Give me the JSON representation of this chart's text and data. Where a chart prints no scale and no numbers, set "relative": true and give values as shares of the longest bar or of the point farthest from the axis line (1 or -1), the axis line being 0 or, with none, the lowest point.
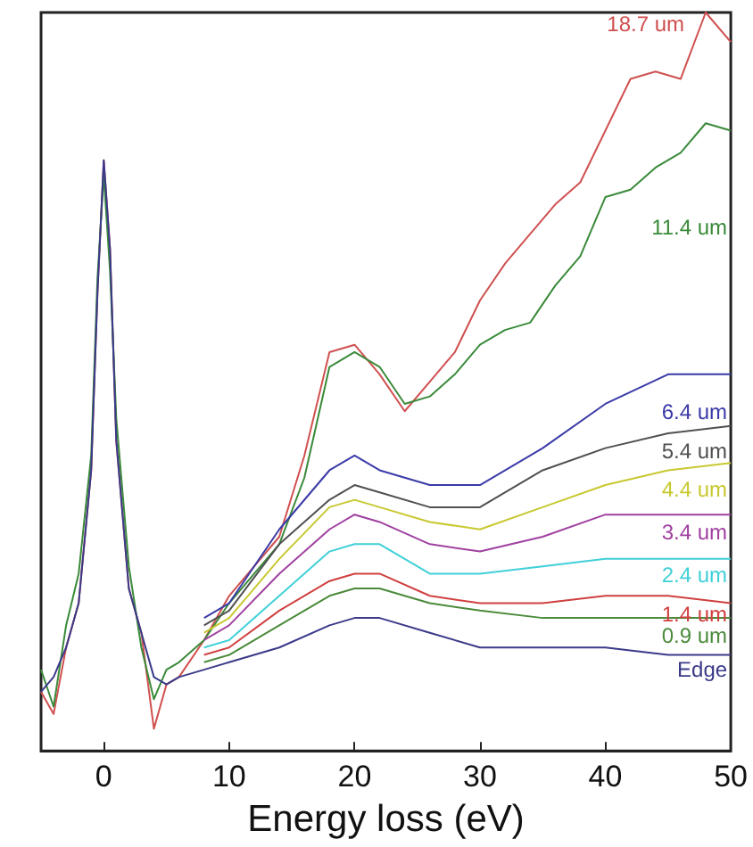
{
  "chart_data": {
    "type": "line",
    "xlabel": "Energy loss (eV)",
    "xlim": [
      -5,
      50
    ],
    "xticks": [
      0,
      10,
      20,
      30,
      40,
      50
    ],
    "relative": true,
    "tick_labels": "x",
    "series": [
      {
        "name": "18.7 um",
        "color": "#d05050",
        "x": [
          -5,
          -4,
          -3,
          -2,
          -1,
          -0.5,
          0,
          0.5,
          1,
          2,
          3,
          4,
          5,
          6,
          8,
          10,
          12,
          14,
          16,
          18,
          20,
          22,
          24,
          26,
          28,
          30,
          32,
          34,
          36,
          38,
          40,
          42,
          44,
          46,
          48,
          50
        ],
        "values": [
          0.08,
          0.05,
          0.14,
          0.2,
          0.38,
          0.62,
          0.8,
          0.68,
          0.42,
          0.22,
          0.16,
          0.03,
          0.09,
          0.1,
          0.15,
          0.21,
          0.25,
          0.29,
          0.4,
          0.54,
          0.55,
          0.51,
          0.46,
          0.5,
          0.54,
          0.61,
          0.66,
          0.7,
          0.74,
          0.77,
          0.84,
          0.91,
          0.92,
          0.91,
          1,
          0.96
        ]
      },
      {
        "name": "11.4 um",
        "color": "#3a8a3a",
        "x": [
          -5,
          -4,
          -3,
          -2,
          -1,
          -0.5,
          0,
          0.5,
          1,
          2,
          3,
          4,
          5,
          6,
          8,
          10,
          12,
          14,
          16,
          18,
          20,
          22,
          24,
          26,
          28,
          30,
          32,
          34,
          36,
          38,
          40,
          42,
          44,
          46,
          48,
          50
        ],
        "values": [
          0.11,
          0.06,
          0.17,
          0.24,
          0.4,
          0.64,
          0.78,
          0.65,
          0.45,
          0.25,
          0.14,
          0.07,
          0.11,
          0.12,
          0.15,
          0.2,
          0.24,
          0.28,
          0.37,
          0.52,
          0.54,
          0.52,
          0.47,
          0.48,
          0.51,
          0.55,
          0.57,
          0.58,
          0.63,
          0.67,
          0.75,
          0.76,
          0.79,
          0.81,
          0.85,
          0.84
        ]
      },
      {
        "name": "6.4 um",
        "color": "#3a3aa8",
        "x": [
          8,
          10,
          14,
          18,
          20,
          22,
          26,
          30,
          35,
          40,
          45,
          50
        ],
        "values": [
          0.18,
          0.2,
          0.3,
          0.38,
          0.4,
          0.38,
          0.36,
          0.36,
          0.41,
          0.47,
          0.51,
          0.51
        ]
      },
      {
        "name": "5.4 um",
        "color": "#505050",
        "x": [
          8,
          10,
          14,
          18,
          20,
          22,
          26,
          30,
          35,
          40,
          45,
          50
        ],
        "values": [
          0.17,
          0.19,
          0.28,
          0.34,
          0.36,
          0.35,
          0.33,
          0.33,
          0.38,
          0.41,
          0.43,
          0.44
        ]
      },
      {
        "name": "4.4 um",
        "color": "#c8c830",
        "x": [
          8,
          10,
          14,
          18,
          20,
          22,
          26,
          30,
          35,
          40,
          45,
          50
        ],
        "values": [
          0.16,
          0.18,
          0.26,
          0.33,
          0.34,
          0.33,
          0.31,
          0.3,
          0.33,
          0.36,
          0.38,
          0.39
        ]
      },
      {
        "name": "3.4 um",
        "color": "#a040a0",
        "x": [
          8,
          10,
          14,
          18,
          20,
          22,
          26,
          30,
          35,
          40,
          45,
          50
        ],
        "values": [
          0.15,
          0.17,
          0.24,
          0.3,
          0.32,
          0.31,
          0.28,
          0.27,
          0.29,
          0.32,
          0.32,
          0.32
        ]
      },
      {
        "name": "2.4 um",
        "color": "#40d0d8",
        "x": [
          8,
          10,
          14,
          18,
          20,
          22,
          26,
          30,
          35,
          40,
          45,
          50
        ],
        "values": [
          0.14,
          0.15,
          0.21,
          0.27,
          0.28,
          0.28,
          0.24,
          0.24,
          0.25,
          0.26,
          0.26,
          0.26
        ]
      },
      {
        "name": "1.4 um",
        "color": "#d04040",
        "x": [
          8,
          10,
          14,
          18,
          20,
          22,
          26,
          30,
          35,
          40,
          45,
          50
        ],
        "values": [
          0.13,
          0.14,
          0.19,
          0.23,
          0.24,
          0.24,
          0.21,
          0.2,
          0.2,
          0.21,
          0.21,
          0.2
        ]
      },
      {
        "name": "0.9 um",
        "color": "#4a8a3a",
        "x": [
          8,
          10,
          14,
          18,
          20,
          22,
          26,
          30,
          35,
          40,
          45,
          50
        ],
        "values": [
          0.12,
          0.13,
          0.17,
          0.21,
          0.22,
          0.22,
          0.2,
          0.19,
          0.18,
          0.18,
          0.18,
          0.18
        ]
      },
      {
        "name": "Edge",
        "color": "#3a3a8a",
        "x": [
          -5,
          -4,
          -3,
          -2,
          -1,
          -0.5,
          0,
          0.5,
          1,
          2,
          3,
          4,
          5,
          6,
          8,
          10,
          14,
          18,
          20,
          22,
          26,
          30,
          35,
          40,
          45,
          50
        ],
        "values": [
          0.08,
          0.1,
          0.14,
          0.2,
          0.38,
          0.62,
          0.8,
          0.68,
          0.42,
          0.22,
          0.16,
          0.1,
          0.09,
          0.1,
          0.11,
          0.12,
          0.14,
          0.17,
          0.18,
          0.18,
          0.16,
          0.14,
          0.14,
          0.14,
          0.13,
          0.13
        ]
      }
    ]
  }
}
